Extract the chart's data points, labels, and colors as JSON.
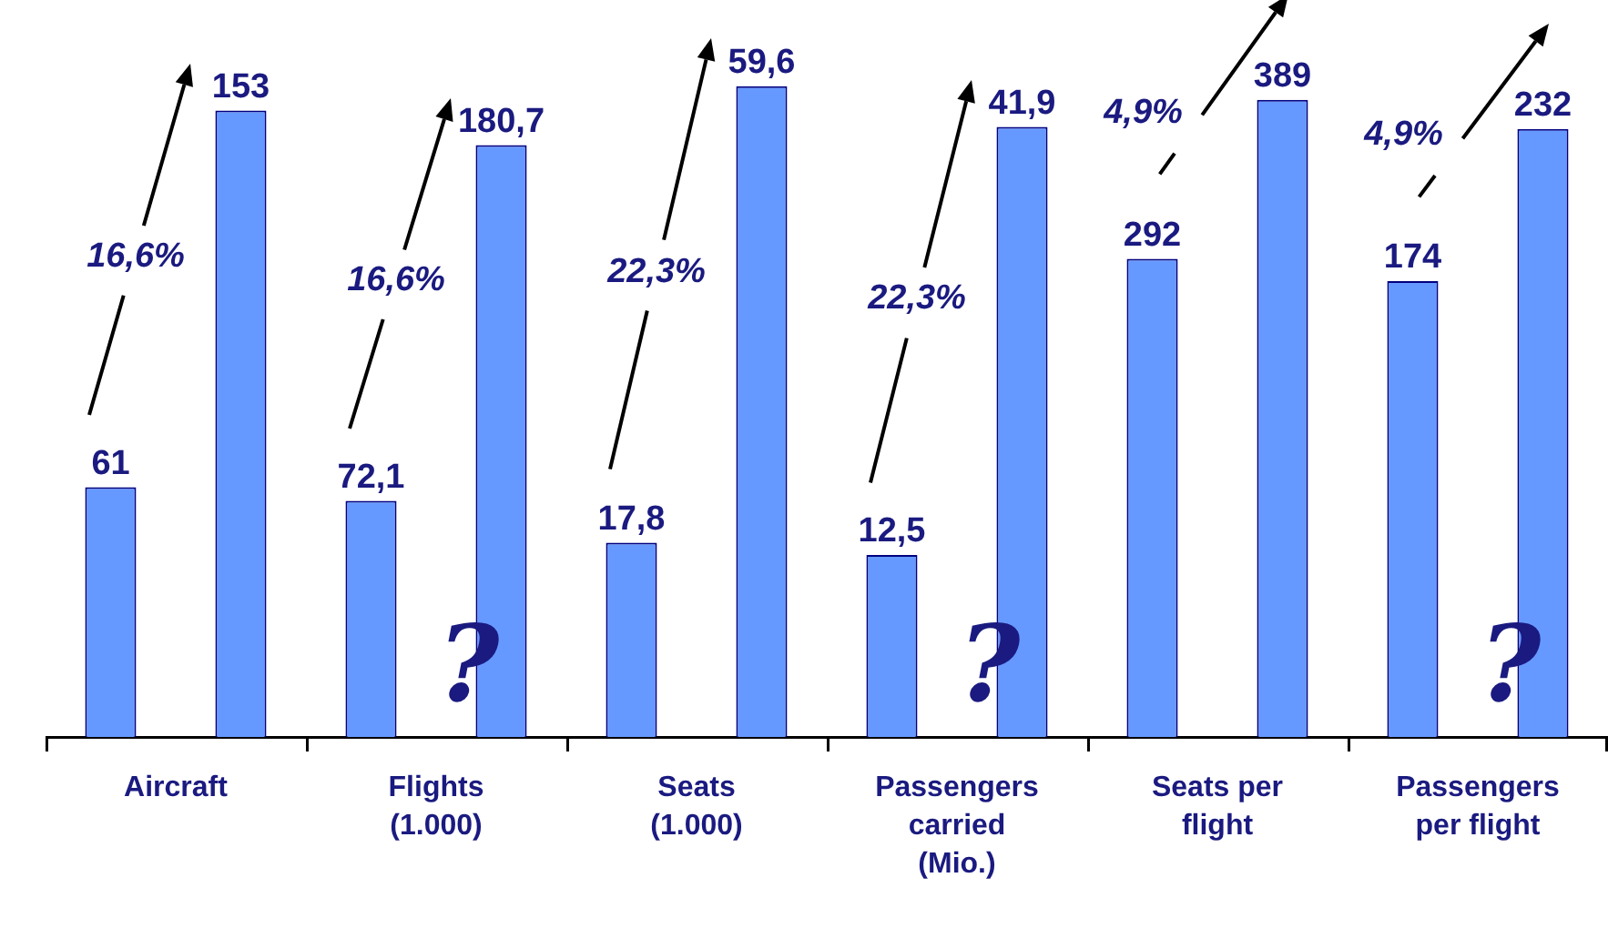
{
  "chart_data": [
    {
      "type": "bar",
      "xlabel": "Aircraft",
      "categories": [
        null,
        null
      ],
      "values": [
        61,
        153
      ],
      "value_labels": [
        "61",
        "153"
      ],
      "color": "#6699ff",
      "tick_labels": false,
      "annotations": [
        "16,6%"
      ]
    },
    {
      "type": "bar",
      "xlabel": "Flights (1.000)",
      "categories": [
        null,
        null
      ],
      "values": [
        72.1,
        180.7
      ],
      "value_labels": [
        "72,1",
        "180,7"
      ],
      "color": "#6699ff",
      "tick_labels": false,
      "annotations": [
        "16,6%",
        "?"
      ]
    },
    {
      "type": "bar",
      "xlabel": "Seats (1.000)",
      "categories": [
        null,
        null
      ],
      "values": [
        17.8,
        59.6
      ],
      "value_labels": [
        "17,8",
        "59,6"
      ],
      "color": "#6699ff",
      "tick_labels": false,
      "annotations": [
        "22,3%"
      ]
    },
    {
      "type": "bar",
      "xlabel": "Passengers carried (Mio.)",
      "categories": [
        null,
        null
      ],
      "values": [
        12.5,
        41.9
      ],
      "value_labels": [
        "12,5",
        "41,9"
      ],
      "color": "#6699ff",
      "tick_labels": false,
      "annotations": [
        "22,3%",
        "?"
      ]
    },
    {
      "type": "bar",
      "xlabel": "Seats per flight",
      "categories": [
        null,
        null
      ],
      "values": [
        292,
        389
      ],
      "value_labels": [
        "292",
        "389"
      ],
      "color": "#6699ff",
      "tick_labels": false,
      "annotations": [
        "4,9%"
      ]
    },
    {
      "type": "bar",
      "xlabel": "Passengers per flight",
      "categories": [
        null,
        null
      ],
      "values": [
        174,
        232
      ],
      "value_labels": [
        "174",
        "232"
      ],
      "color": "#6699ff",
      "tick_labels": false,
      "annotations": [
        "4,9%",
        "?"
      ]
    }
  ]
}
